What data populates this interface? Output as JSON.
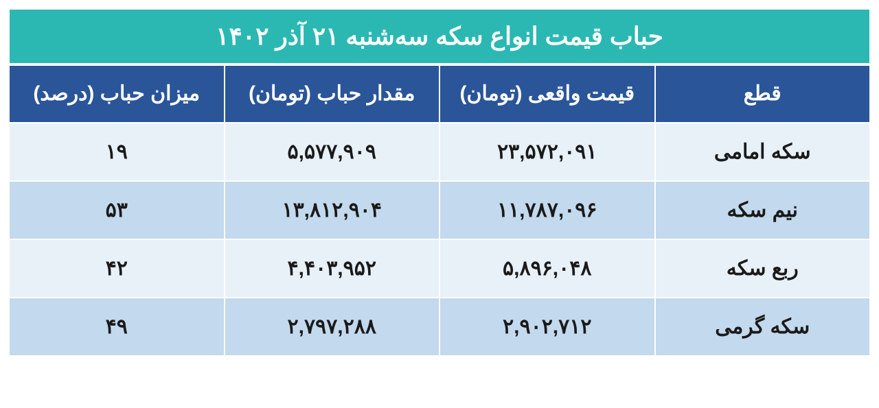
{
  "table": {
    "type": "table",
    "title": "حباب قیمت انواع سکه سه‌شنبه ۲۱ آذر ۱۴۰۲",
    "colors": {
      "title_bg": "#2bb8b3",
      "header_bg": "#2a5599",
      "header_text": "#ffffff",
      "row_odd_bg": "#e8f0f8",
      "row_even_bg": "#c3d9ed",
      "cell_text": "#1a1a1a",
      "border": "#ffffff"
    },
    "fontsize": {
      "title": 36,
      "header": 30,
      "cell": 30
    },
    "columns": [
      "قطع",
      "قیمت واقعی (تومان)",
      "مقدار حباب (تومان)",
      "میزان حباب (درصد)"
    ],
    "rows": [
      {
        "name": "سکه امامی",
        "real_price": "۲۳,۵۷۲,۰۹۱",
        "bubble_amount": "۵,۵۷۷,۹۰۹",
        "bubble_percent": "۱۹"
      },
      {
        "name": "نیم سکه",
        "real_price": "۱۱,۷۸۷,۰۹۶",
        "bubble_amount": "۱۳,۸۱۲,۹۰۴",
        "bubble_percent": "۵۳"
      },
      {
        "name": "ربع سکه",
        "real_price": "۵,۸۹۶,۰۴۸",
        "bubble_amount": "۴,۴۰۳,۹۵۲",
        "bubble_percent": "۴۲"
      },
      {
        "name": "سکه گرمی",
        "real_price": "۲,۹۰۲,۷۱۲",
        "bubble_amount": "۲,۷۹۷,۲۸۸",
        "bubble_percent": "۴۹"
      }
    ]
  }
}
